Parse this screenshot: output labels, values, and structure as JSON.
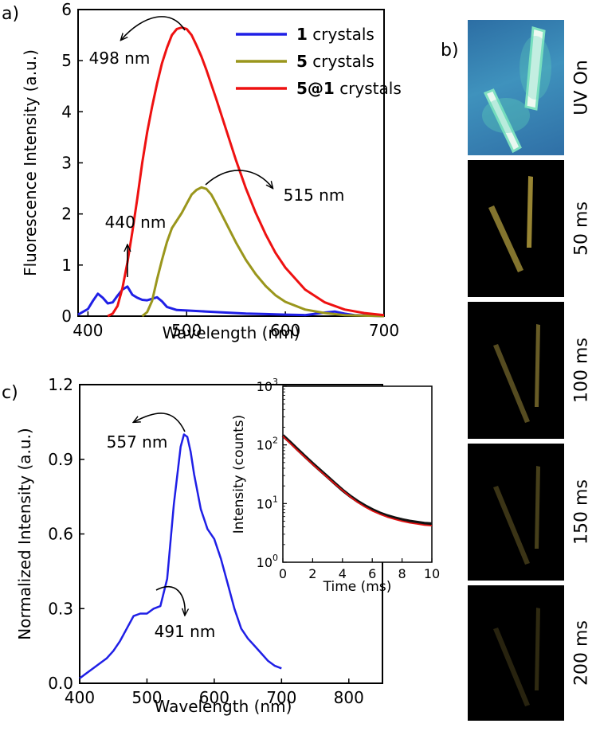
{
  "panel_labels": {
    "a": "a)",
    "b": "b)",
    "c": "c)"
  },
  "chart_data": [
    {
      "id": "a",
      "type": "line",
      "xlabel": "Wavelength (nm)",
      "ylabel": "Fluorescence Intensity (a.u.)",
      "xlim": [
        390,
        700
      ],
      "ylim": [
        0,
        6
      ],
      "xticks": [
        "400",
        "500",
        "600",
        "700"
      ],
      "yticks": [
        "0",
        "1",
        "2",
        "3",
        "4",
        "5",
        "6"
      ],
      "legend_position": "top-right",
      "legend": [
        {
          "bold": "1",
          "text": " crystals",
          "color": "#1f1fe6"
        },
        {
          "bold": "5",
          "text": " crystals",
          "color": "#9a961c"
        },
        {
          "bold": "5@1",
          "text": " crystals",
          "color": "#ee1111"
        }
      ],
      "series": [
        {
          "color": "#1f1fe6",
          "x": [
            390,
            400,
            405,
            410,
            415,
            420,
            425,
            430,
            435,
            440,
            445,
            450,
            455,
            460,
            465,
            470,
            475,
            480,
            490,
            500,
            520,
            540,
            560,
            580,
            600,
            620,
            640,
            650,
            660,
            670,
            700
          ],
          "y": [
            0.03,
            0.14,
            0.3,
            0.44,
            0.36,
            0.25,
            0.27,
            0.4,
            0.52,
            0.58,
            0.42,
            0.36,
            0.32,
            0.31,
            0.34,
            0.37,
            0.29,
            0.18,
            0.12,
            0.11,
            0.09,
            0.07,
            0.05,
            0.04,
            0.03,
            0.02,
            0.07,
            0.09,
            0.05,
            0.02,
            0.0
          ]
        },
        {
          "color": "#9a961c",
          "x": [
            455,
            460,
            465,
            470,
            475,
            480,
            485,
            490,
            495,
            500,
            505,
            510,
            515,
            520,
            525,
            530,
            540,
            550,
            560,
            570,
            580,
            590,
            600,
            620,
            640,
            660,
            680,
            700
          ],
          "y": [
            0.0,
            0.08,
            0.3,
            0.72,
            1.1,
            1.45,
            1.72,
            1.87,
            2.02,
            2.2,
            2.38,
            2.47,
            2.52,
            2.49,
            2.38,
            2.2,
            1.82,
            1.44,
            1.1,
            0.82,
            0.59,
            0.41,
            0.28,
            0.13,
            0.06,
            0.02,
            0.01,
            0.0
          ]
        },
        {
          "color": "#ee1111",
          "x": [
            420,
            425,
            430,
            435,
            440,
            445,
            450,
            455,
            460,
            465,
            470,
            475,
            480,
            485,
            490,
            495,
            500,
            505,
            510,
            515,
            520,
            530,
            540,
            550,
            560,
            570,
            580,
            590,
            600,
            620,
            640,
            660,
            680,
            700
          ],
          "y": [
            0.0,
            0.05,
            0.2,
            0.55,
            1.05,
            1.65,
            2.3,
            3.0,
            3.6,
            4.1,
            4.55,
            4.95,
            5.25,
            5.5,
            5.62,
            5.65,
            5.62,
            5.5,
            5.3,
            5.08,
            4.82,
            4.25,
            3.65,
            3.05,
            2.5,
            2.02,
            1.6,
            1.24,
            0.95,
            0.52,
            0.27,
            0.13,
            0.06,
            0.02
          ]
        }
      ],
      "annotations": [
        {
          "text": "498 nm",
          "x": 498,
          "y": 5.65
        },
        {
          "text": "515 nm",
          "x": 515,
          "y": 2.52
        },
        {
          "text": "440 nm",
          "x": 440,
          "y": 0.58
        }
      ]
    },
    {
      "id": "c",
      "type": "line",
      "xlabel": "Wavelength (nm)",
      "ylabel": "Normalized Intensity (a.u.)",
      "xlim": [
        400,
        850
      ],
      "ylim": [
        0,
        1.2
      ],
      "xticks": [
        "400",
        "500",
        "600",
        "700",
        "800"
      ],
      "yticks": [
        "0.0",
        "0.3",
        "0.6",
        "0.9",
        "1.2"
      ],
      "series": [
        {
          "color": "#1f1fe6",
          "x": [
            400,
            410,
            420,
            430,
            440,
            450,
            460,
            470,
            480,
            490,
            500,
            510,
            520,
            530,
            540,
            550,
            555,
            560,
            565,
            570,
            580,
            590,
            600,
            610,
            620,
            630,
            640,
            650,
            660,
            670,
            680,
            690,
            700
          ],
          "y": [
            0.02,
            0.04,
            0.06,
            0.08,
            0.1,
            0.13,
            0.17,
            0.22,
            0.27,
            0.28,
            0.28,
            0.3,
            0.31,
            0.42,
            0.72,
            0.95,
            1.0,
            0.99,
            0.93,
            0.84,
            0.7,
            0.62,
            0.58,
            0.5,
            0.4,
            0.3,
            0.22,
            0.18,
            0.15,
            0.12,
            0.09,
            0.07,
            0.06
          ]
        }
      ],
      "annotations": [
        {
          "text": "557 nm",
          "x": 557,
          "y": 1.0
        },
        {
          "text": "491 nm",
          "x": 491,
          "y": 0.28
        }
      ]
    },
    {
      "id": "c-inset",
      "type": "line",
      "log_y": true,
      "xlabel": "Time (ms)",
      "ylabel": "Intensity (counts)",
      "xlim": [
        0,
        10
      ],
      "ylim": [
        1,
        1000
      ],
      "xticks": [
        "0",
        "2",
        "4",
        "6",
        "8",
        "10"
      ],
      "ytick_exponents": [
        "0",
        "1",
        "2",
        "3"
      ],
      "ytick_base": "10",
      "series": [
        {
          "color": "#111111",
          "x": [
            0,
            0.5,
            1,
            1.5,
            2,
            2.5,
            3,
            3.5,
            4,
            4.5,
            5,
            5.5,
            6,
            6.5,
            7,
            7.5,
            8,
            8.5,
            9,
            9.5,
            10
          ],
          "y": [
            145,
            110,
            83,
            63,
            48,
            37,
            28.5,
            22,
            17,
            13.5,
            11,
            9.2,
            7.9,
            6.9,
            6.2,
            5.7,
            5.3,
            5.0,
            4.8,
            4.6,
            4.5
          ]
        },
        {
          "color": "#e01010",
          "x": [
            0,
            0.5,
            1,
            1.5,
            2,
            2.5,
            3,
            3.5,
            4,
            4.5,
            5,
            5.5,
            6,
            6.5,
            7,
            7.5,
            8,
            8.5,
            9,
            9.5,
            10
          ],
          "y": [
            140,
            106,
            80,
            61,
            46.5,
            35.8,
            27.7,
            21.5,
            16.8,
            13.2,
            10.6,
            8.8,
            7.5,
            6.6,
            5.9,
            5.4,
            5.0,
            4.7,
            4.5,
            4.3,
            4.2
          ]
        }
      ]
    }
  ],
  "photos": [
    {
      "label": "UV On",
      "background": "#3a86b4"
    },
    {
      "label": "50 ms",
      "background": "#000000"
    },
    {
      "label": "100 ms",
      "background": "#000000"
    },
    {
      "label": "150 ms",
      "background": "#000000"
    },
    {
      "label": "200 ms",
      "background": "#000000"
    }
  ]
}
